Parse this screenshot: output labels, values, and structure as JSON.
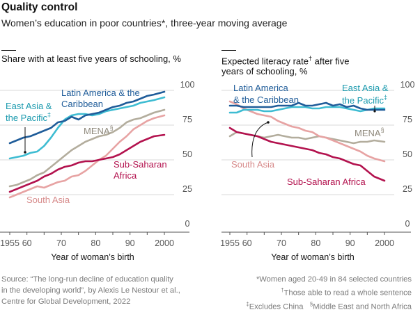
{
  "header": {
    "title": "Quality control",
    "subtitle": "Women’s education in poor countries*, three-year moving average"
  },
  "colors": {
    "latin_america": "#1f5c99",
    "east_asia": "#3ebcd2",
    "mena": "#b3ad9d",
    "south_asia": "#e7a3a3",
    "sub_saharan": "#b3124e",
    "grid": "#d9d9d9",
    "axis": "#555555"
  },
  "chart_data": [
    {
      "type": "line",
      "title": "Share with at least five years of schooling, %",
      "xlabel": "Year of woman’s birth",
      "ylabel": "",
      "xlim": [
        1955,
        2000
      ],
      "ylim": [
        0,
        100
      ],
      "yticks": [
        0,
        25,
        50,
        75,
        100
      ],
      "xticks": [
        1955,
        1960,
        1965,
        1970,
        1975,
        1980,
        1985,
        1990,
        1995,
        2000
      ],
      "xtick_labels": [
        "1955",
        "60",
        "",
        "70",
        "",
        "80",
        "",
        "90",
        "",
        "2000"
      ],
      "grid": true,
      "x": [
        1955,
        1957,
        1959,
        1961,
        1963,
        1965,
        1967,
        1969,
        1971,
        1973,
        1975,
        1977,
        1979,
        1981,
        1983,
        1985,
        1987,
        1989,
        1991,
        1993,
        1995,
        1997,
        2000
      ],
      "series": [
        {
          "name": "Latin America & the Caribbean",
          "key": "latin_america",
          "label_lines": [
            "Latin America & the",
            "Caribbean"
          ],
          "values": [
            62,
            64,
            66,
            67,
            69,
            71,
            73,
            77,
            78,
            81,
            79,
            82,
            83,
            84,
            86,
            88,
            89,
            91,
            92,
            94,
            96,
            97,
            99
          ]
        },
        {
          "name": "East Asia & the Pacific‡",
          "key": "east_asia",
          "label_lines": [
            "East Asia &",
            "the Pacific‡"
          ],
          "values": [
            51,
            52,
            53,
            55,
            56,
            60,
            66,
            73,
            79,
            82,
            83,
            83,
            82,
            83,
            85,
            86,
            87,
            88,
            89,
            91,
            92,
            93,
            95
          ]
        },
        {
          "name": "MENA§",
          "key": "mena",
          "label_lines": [
            "MENA§"
          ],
          "values": [
            31,
            32,
            34,
            36,
            39,
            41,
            45,
            49,
            53,
            57,
            60,
            63,
            65,
            67,
            68,
            70,
            73,
            77,
            79,
            80,
            82,
            84,
            86
          ]
        },
        {
          "name": "South Asia",
          "key": "south_asia",
          "label_lines": [
            "South Asia"
          ],
          "values": [
            23,
            25,
            27,
            29,
            31,
            30,
            32,
            34,
            35,
            38,
            39,
            42,
            46,
            50,
            53,
            58,
            63,
            67,
            72,
            75,
            78,
            80,
            82
          ]
        },
        {
          "name": "Sub-Saharan Africa",
          "key": "sub_saharan",
          "label_lines": [
            "Sub-Saharan",
            "Africa"
          ],
          "values": [
            27,
            29,
            31,
            33,
            35,
            38,
            40,
            43,
            45,
            46,
            48,
            49,
            49,
            50,
            51,
            52,
            54,
            57,
            60,
            63,
            65,
            67,
            68
          ]
        }
      ]
    },
    {
      "type": "line",
      "title": "Expected literacy rate† after five years of schooling, %",
      "xlabel": "Year of woman’s birth",
      "ylabel": "",
      "xlim": [
        1955,
        2000
      ],
      "ylim": [
        0,
        100
      ],
      "yticks": [
        0,
        25,
        50,
        75,
        100
      ],
      "xticks": [
        1955,
        1960,
        1965,
        1970,
        1975,
        1980,
        1985,
        1990,
        1995,
        2000
      ],
      "xtick_labels": [
        "1955",
        "60",
        "",
        "70",
        "",
        "80",
        "",
        "90",
        "",
        "2000"
      ],
      "grid": true,
      "x": [
        1955,
        1957,
        1959,
        1961,
        1963,
        1965,
        1967,
        1969,
        1971,
        1973,
        1975,
        1977,
        1979,
        1981,
        1983,
        1985,
        1987,
        1989,
        1991,
        1993,
        1995,
        1997,
        2000
      ],
      "series": [
        {
          "name": "Latin America & the Caribbean",
          "key": "latin_america",
          "label_lines": [
            "Latin America",
            "& the Caribbean"
          ],
          "values": [
            89,
            89,
            88,
            88,
            88,
            88,
            88,
            89,
            89,
            89,
            91,
            89,
            89,
            90,
            91,
            89,
            90,
            88,
            89,
            87,
            86,
            86,
            86
          ]
        },
        {
          "name": "East Asia & the Pacific‡",
          "key": "east_asia",
          "label_lines": [
            "East Asia &",
            "the Pacific‡"
          ],
          "values": [
            84,
            84,
            86,
            86,
            86,
            85,
            85,
            86,
            87,
            88,
            88,
            88,
            87,
            87,
            88,
            88,
            88,
            87,
            86,
            85,
            86,
            87,
            87
          ]
        },
        {
          "name": "MENA§",
          "key": "mena",
          "label_lines": [
            "MENA§"
          ],
          "values": [
            67,
            70,
            69,
            68,
            67,
            66,
            67,
            68,
            67,
            66,
            66,
            65,
            66,
            67,
            66,
            65,
            64,
            63,
            62,
            63,
            63,
            64,
            63
          ]
        },
        {
          "name": "South Asia",
          "key": "south_asia",
          "label_lines": [
            "South Asia"
          ],
          "values": [
            92,
            90,
            87,
            85,
            83,
            82,
            81,
            78,
            76,
            74,
            73,
            71,
            70,
            67,
            66,
            64,
            62,
            60,
            58,
            56,
            53,
            51,
            49
          ]
        },
        {
          "name": "Sub-Saharan Africa",
          "key": "sub_saharan",
          "label_lines": [
            "Sub-Saharan Africa"
          ],
          "values": [
            73,
            70,
            69,
            68,
            67,
            65,
            63,
            62,
            61,
            60,
            59,
            58,
            57,
            55,
            54,
            52,
            51,
            49,
            47,
            46,
            42,
            38,
            35
          ]
        }
      ]
    }
  ],
  "panels": [
    {
      "title_main": "Share with at least five years of schooling, %",
      "title_lines": [
        "Share with at least five years of schooling, %"
      ]
    },
    {
      "title_line1_a": "Expected literacy rate",
      "title_line1_sup": "†",
      "title_line1_b": " after five",
      "title_line2": "years of schooling, %"
    }
  ],
  "footer": {
    "source_lines": [
      "Source: “The long-run decline of education quality",
      "in the developing world”, by Alexis Le Nestour et al.,",
      "Centre for Global Development, 2022"
    ],
    "note1": "*Women aged 20-49 in 84 selected countries",
    "note2_sup": "†",
    "note2": "Those able to read a whole sentence",
    "note3_sup": "‡",
    "note3": "Excludes China",
    "note4_sup": "§",
    "note4": "Middle East and North Africa"
  }
}
